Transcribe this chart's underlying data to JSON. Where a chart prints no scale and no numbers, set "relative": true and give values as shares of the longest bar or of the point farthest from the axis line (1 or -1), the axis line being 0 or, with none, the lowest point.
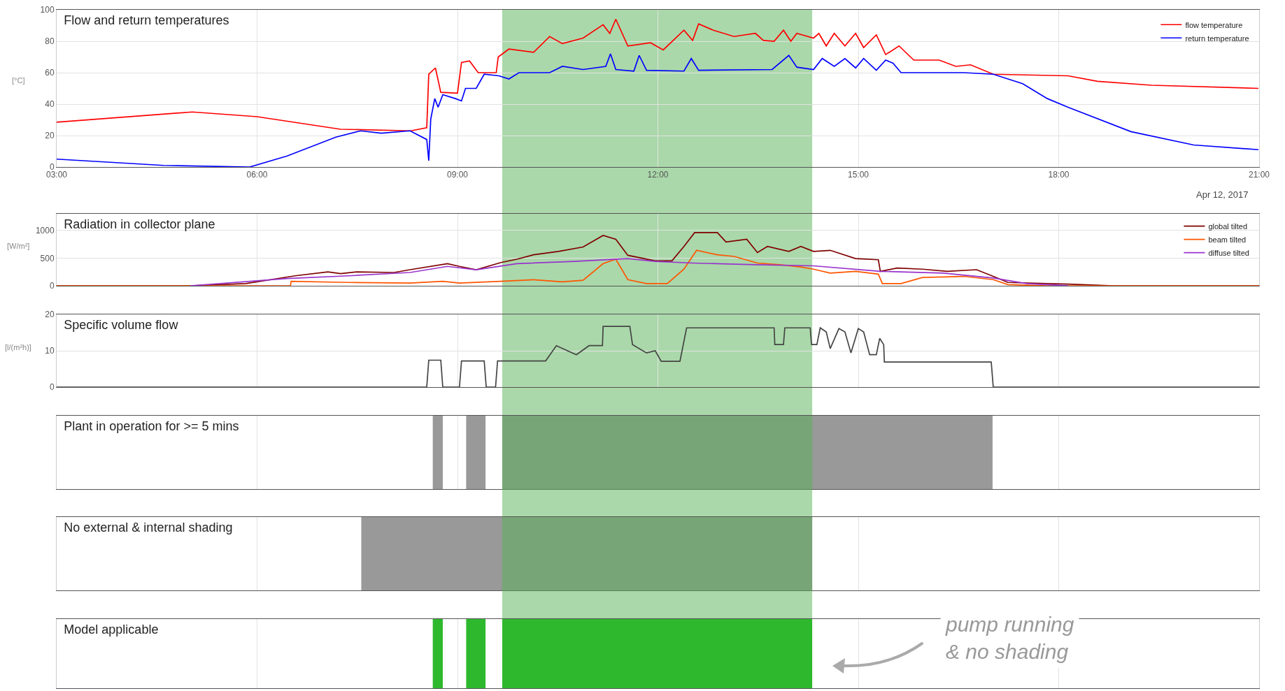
{
  "chart_data": [
    {
      "type": "line",
      "title": "Flow and return temperatures",
      "ylabel": "[°C]",
      "annotations": [
        "Apr 12, 2017"
      ],
      "xlim": [
        3,
        21
      ],
      "xticks": [
        {
          "value": 3,
          "label": "03:00"
        },
        {
          "value": 6,
          "label": "06:00"
        },
        {
          "value": 9,
          "label": "09:00"
        },
        {
          "value": 12,
          "label": "12:00"
        },
        {
          "value": 15,
          "label": "15:00"
        },
        {
          "value": 18,
          "label": "18:00"
        },
        {
          "value": 21,
          "label": "21:00"
        }
      ],
      "ylim": [
        0,
        100
      ],
      "yticks": [
        0,
        20,
        40,
        60,
        80,
        100
      ],
      "grid": true,
      "legend": "top right",
      "bands": [
        {
          "axis": "x",
          "from": 9.67,
          "to": 14.31,
          "color": "#55b255"
        }
      ],
      "series": [
        {
          "name": "flow temperature",
          "color": "#ff0000",
          "x": [
            3.0,
            5.03,
            6.0,
            7.25,
            8.3,
            8.54,
            8.57,
            8.67,
            8.75,
            9.0,
            9.06,
            9.18,
            9.31,
            9.58,
            9.61,
            9.77,
            10.14,
            10.38,
            10.57,
            10.88,
            11.18,
            11.28,
            11.37,
            11.55,
            11.89,
            12.08,
            12.39,
            12.52,
            12.61,
            12.83,
            13.14,
            13.46,
            13.58,
            13.74,
            13.88,
            13.99,
            14.08,
            14.33,
            14.41,
            14.52,
            14.64,
            14.8,
            14.96,
            15.08,
            15.27,
            15.41,
            15.61,
            15.83,
            16.21,
            16.46,
            16.68,
            17.02,
            18.14,
            18.58,
            19.39,
            20.99
          ],
          "values": [
            28.5,
            35,
            32,
            24,
            23,
            25,
            59,
            63,
            47.5,
            47,
            66.5,
            67.5,
            60,
            60,
            70,
            75,
            73,
            83,
            78.5,
            82,
            90.5,
            85,
            94,
            77,
            79,
            74.5,
            87,
            80.5,
            91,
            87,
            83,
            85,
            80.5,
            80,
            87,
            80,
            85,
            82,
            85,
            77,
            85,
            77,
            85,
            76,
            84,
            71.5,
            77,
            68,
            68,
            64,
            65,
            59,
            58,
            54.5,
            52,
            50
          ]
        },
        {
          "name": "return temperature",
          "color": "#0000ff",
          "x": [
            3.0,
            4.6,
            5.89,
            6.45,
            7.18,
            7.55,
            7.86,
            8.29,
            8.54,
            8.57,
            8.6,
            8.66,
            8.71,
            8.78,
            8.97,
            9.06,
            9.12,
            9.28,
            9.4,
            9.62,
            9.77,
            9.92,
            10.38,
            10.57,
            10.88,
            11.22,
            11.29,
            11.37,
            11.64,
            11.72,
            11.83,
            12.39,
            12.5,
            12.61,
            13.71,
            13.96,
            14.08,
            14.33,
            14.46,
            14.64,
            14.8,
            14.96,
            15.08,
            15.27,
            15.41,
            15.52,
            15.64,
            16.58,
            17.02,
            17.46,
            17.83,
            18.14,
            19.08,
            20.02,
            20.99
          ],
          "values": [
            5,
            1,
            0,
            7,
            19,
            23,
            21.5,
            23,
            17.5,
            4,
            30.5,
            43.5,
            38,
            46,
            43.5,
            42,
            50,
            50,
            59,
            58,
            56,
            60,
            60,
            64,
            62,
            64,
            72,
            62,
            61,
            71,
            61.5,
            61,
            69,
            61.5,
            62,
            71,
            63.5,
            62,
            69,
            64,
            69,
            63,
            69,
            61.5,
            68,
            66,
            60,
            60,
            59,
            53,
            43.5,
            38,
            22.5,
            14,
            11
          ]
        }
      ]
    },
    {
      "type": "line",
      "title": "Radiation in collector plane",
      "ylabel": "[W/m²]",
      "xlim": [
        3,
        21
      ],
      "xticks": [
        3,
        6,
        9,
        12,
        15,
        18,
        21
      ],
      "ylim": [
        0,
        1300
      ],
      "yticks": [
        0,
        500,
        1000
      ],
      "grid": true,
      "legend": "top right",
      "tick_labels": "y",
      "bands": [
        {
          "axis": "x",
          "from": 9.67,
          "to": 14.31,
          "color": "#55b255"
        }
      ],
      "series": [
        {
          "name": "global tilted",
          "color": "#800000",
          "x": [
            3,
            5,
            5.83,
            6.57,
            7.06,
            7.25,
            7.49,
            8.05,
            8.29,
            8.85,
            9.03,
            9.28,
            9.65,
            9.89,
            10.14,
            10.51,
            10.88,
            11.18,
            11.37,
            11.55,
            11.96,
            12.21,
            12.39,
            12.55,
            12.89,
            13.02,
            13.33,
            13.49,
            13.64,
            13.96,
            14.14,
            14.33,
            14.58,
            14.96,
            15.3,
            15.33,
            15.58,
            15.96,
            16.33,
            16.77,
            17.02,
            17.24,
            18.14,
            18.83,
            21
          ],
          "values": [
            0,
            0,
            40,
            180,
            250,
            220,
            250,
            240,
            290,
            400,
            350,
            290,
            420,
            480,
            560,
            620,
            700,
            910,
            840,
            550,
            450,
            450,
            710,
            960,
            960,
            790,
            840,
            600,
            710,
            620,
            710,
            620,
            640,
            490,
            470,
            260,
            320,
            300,
            260,
            290,
            170,
            60,
            30,
            0,
            0
          ]
        },
        {
          "name": "beam tilted",
          "color": "#ff5500",
          "x": [
            3,
            6.5,
            6.51,
            7.37,
            8.29,
            8.78,
            9.03,
            9.65,
            10.14,
            10.57,
            10.88,
            11.18,
            11.37,
            11.55,
            11.83,
            12.14,
            12.39,
            12.58,
            12.89,
            13.14,
            13.49,
            13.83,
            14.14,
            14.33,
            14.58,
            14.96,
            15.3,
            15.36,
            15.64,
            15.96,
            16.58,
            17.02,
            17.24,
            17.83,
            21
          ],
          "values": [
            0,
            0,
            80,
            60,
            50,
            80,
            50,
            80,
            110,
            70,
            100,
            400,
            480,
            110,
            40,
            40,
            300,
            640,
            560,
            530,
            410,
            380,
            340,
            300,
            230,
            260,
            210,
            40,
            40,
            150,
            170,
            110,
            20,
            0,
            0
          ]
        },
        {
          "name": "diffuse tilted",
          "color": "#9933cc",
          "x": [
            5,
            6.45,
            7.37,
            8.29,
            8.85,
            9.28,
            9.89,
            10.75,
            11.55,
            11.96,
            12.52,
            13.46,
            14.33,
            15.33,
            16.27,
            17.02,
            17.52,
            18.14
          ],
          "values": [
            0,
            130,
            180,
            240,
            350,
            290,
            400,
            440,
            490,
            440,
            410,
            380,
            360,
            260,
            230,
            140,
            40,
            0
          ]
        }
      ]
    },
    {
      "type": "line",
      "title": "Specific volume flow",
      "ylabel": "[l/(m²h)]",
      "xlim": [
        3,
        21
      ],
      "xticks": [
        3,
        6,
        9,
        12,
        15,
        18,
        21
      ],
      "ylim": [
        0,
        20
      ],
      "yticks": [
        0,
        10,
        20
      ],
      "grid": true,
      "tick_labels": "y",
      "bands": [
        {
          "axis": "x",
          "from": 9.67,
          "to": 14.31,
          "color": "#55b255"
        }
      ],
      "series": [
        {
          "color": "#444444",
          "x": [
            3,
            8.54,
            8.57,
            8.75,
            8.78,
            9.03,
            9.06,
            9.4,
            9.43,
            9.57,
            9.6,
            10.32,
            10.48,
            10.78,
            10.97,
            11.17,
            11.18,
            11.58,
            11.62,
            11.83,
            11.96,
            12.05,
            12.33,
            12.43,
            13.74,
            13.75,
            13.88,
            13.9,
            14.28,
            14.3,
            14.38,
            14.43,
            14.52,
            14.58,
            14.71,
            14.8,
            14.89,
            15.0,
            15.08,
            15.17,
            15.27,
            15.32,
            15.38,
            15.39,
            16.99,
            17.02,
            21
          ],
          "values": [
            0,
            0,
            7.4,
            7.4,
            0,
            0,
            7.2,
            7.2,
            0,
            0,
            7.2,
            7.2,
            11.4,
            8.9,
            11.4,
            11.4,
            16.7,
            16.7,
            11.7,
            9.4,
            10,
            7.1,
            7.1,
            16.3,
            16.3,
            11.7,
            11.7,
            16.3,
            16.3,
            11.7,
            11.7,
            16.3,
            15.2,
            10.6,
            16.1,
            15.2,
            9.4,
            16.1,
            15.2,
            8.9,
            8.9,
            13.4,
            11.7,
            6.9,
            6.9,
            0,
            0
          ]
        }
      ]
    },
    {
      "type": "area",
      "title": "Plant in operation for >= 5 mins",
      "relative": true,
      "xlim": [
        3,
        21
      ],
      "xticks": [
        3,
        6,
        9,
        12,
        15,
        18,
        21
      ],
      "grid": "x",
      "tick_labels": false,
      "bands": [
        {
          "axis": "x",
          "from": 9.67,
          "to": 14.31,
          "color": "#55b255"
        }
      ],
      "series": [
        {
          "color": "#999999",
          "x": [
            3,
            8.63,
            8.63,
            8.78,
            8.78,
            9.13,
            9.13,
            9.42,
            9.42,
            9.67,
            9.67,
            17.01,
            17.01,
            21
          ],
          "values": [
            0,
            0,
            1,
            1,
            0,
            0,
            1,
            1,
            0,
            0,
            1,
            1,
            0,
            0
          ]
        }
      ]
    },
    {
      "type": "area",
      "title": "No external & internal shading",
      "relative": true,
      "xlim": [
        3,
        21
      ],
      "xticks": [
        3,
        6,
        9,
        12,
        15,
        18,
        21
      ],
      "grid": "x",
      "tick_labels": false,
      "bands": [
        {
          "axis": "x",
          "from": 9.67,
          "to": 14.31,
          "color": "#55b255"
        }
      ],
      "series": [
        {
          "color": "#999999",
          "x": [
            3,
            7.56,
            7.56,
            14.31,
            14.31,
            21
          ],
          "values": [
            0,
            0,
            1,
            1,
            0,
            0
          ]
        }
      ]
    },
    {
      "type": "area",
      "title": "Model applicable",
      "relative": true,
      "annotations": [
        "pump running\n& no shading"
      ],
      "xlim": [
        3,
        21
      ],
      "xticks": [
        3,
        6,
        9,
        12,
        15,
        18,
        21
      ],
      "grid": "x",
      "tick_labels": false,
      "series": [
        {
          "color": "#2eb82e",
          "x": [
            3,
            8.63,
            8.63,
            8.78,
            8.78,
            9.13,
            9.13,
            9.42,
            9.42,
            9.67,
            9.67,
            14.31,
            14.31,
            21
          ],
          "values": [
            0,
            0,
            1,
            1,
            0,
            0,
            1,
            1,
            0,
            0,
            1,
            1,
            0,
            0
          ]
        }
      ]
    }
  ]
}
